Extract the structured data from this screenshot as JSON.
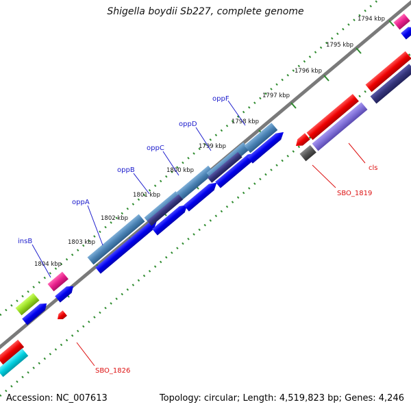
{
  "title": "Shigella boydii Sb227, complete genome",
  "accession": "Accession: NC_007613",
  "topology": "Topology: circular; Length: 4,519,823 bp; Genes: 4,246",
  "kbp_labels": [
    "1794 kbp",
    "1795 kbp",
    "1796 kbp",
    "1797 kbp",
    "1798 kbp",
    "1799 kbp",
    "1800 kbp",
    "1801 kbp",
    "1802 kbp",
    "1803 kbp",
    "1804 kbp"
  ],
  "gene_labels": {
    "oppF": "oppF",
    "oppD": "oppD",
    "oppC": "oppC",
    "oppB": "oppB",
    "oppA": "oppA",
    "insB": "insB",
    "cls": "cls",
    "SBO_1819": "SBO_1819",
    "SBO_1826": "SBO_1826"
  },
  "colors": {
    "backbone": "#7a7a7a",
    "ticks": "#2e8b2e",
    "cds_blue": "#0000ee",
    "cds_steel": "#4a82b4",
    "cds_navy": "#34347a",
    "cds_red": "#ee0000",
    "cds_pink": "#e8208c",
    "cds_lime": "#99dd22",
    "cds_cyan": "#00d0e0",
    "cds_lavender": "#8070d8",
    "cds_gray": "#555555",
    "label_blue": "#1a1acc",
    "label_red": "#dd1111"
  }
}
